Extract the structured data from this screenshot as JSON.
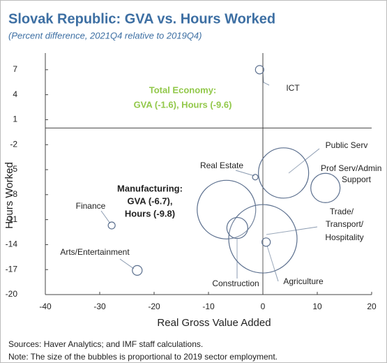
{
  "chart_data": {
    "type": "bubble",
    "title": "Slovak Republic: GVA vs. Hours Worked",
    "subtitle": "(Percent difference, 2021Q4 relative to 2019Q4)",
    "xlabel": "Real Gross Value Added",
    "ylabel": "Hours Worked",
    "xlim": [
      -40,
      20
    ],
    "ylim": [
      -20,
      9
    ],
    "xticks": [
      -40,
      -30,
      -20,
      -10,
      0,
      10,
      20
    ],
    "yticks": [
      7,
      4,
      1,
      -2,
      -5,
      -8,
      -11,
      -14,
      -17,
      -20
    ],
    "color": "#5b6f8e",
    "points": [
      {
        "label": [
          "ICT"
        ],
        "x": -0.6,
        "y": 7,
        "size": 36
      },
      {
        "label": [
          "Public Serv"
        ],
        "x": 3.8,
        "y": -5.4,
        "size": 1296
      },
      {
        "label": [
          "Prof Serv/Admin",
          "Support"
        ],
        "x": 11.5,
        "y": -7.2,
        "size": 441
      },
      {
        "label": [
          "Real Estate"
        ],
        "x": -1.4,
        "y": -5.9,
        "size": 16
      },
      {
        "label": [
          "Manufacturing:",
          "GVA (-6.7),",
          "Hours (-9.8)"
        ],
        "x": -6.7,
        "y": -9.8,
        "size": 1764
      },
      {
        "label": [
          "Trade/",
          "Transport/",
          "Hospitality"
        ],
        "x": 0,
        "y": -13.3,
        "size": 2401
      },
      {
        "label": [
          "Construction"
        ],
        "x": -4.7,
        "y": -12,
        "size": 225
      },
      {
        "label": [
          "Agriculture"
        ],
        "x": 0.6,
        "y": -13.7,
        "size": 36
      },
      {
        "label": [
          "Finance"
        ],
        "x": -27.8,
        "y": -11.7,
        "size": 25
      },
      {
        "label": [
          "Arts/Entertainment"
        ],
        "x": -23.1,
        "y": -17.1,
        "size": 49
      }
    ],
    "annotation": [
      "Total Economy:",
      "GVA (-1.6), Hours (-9.6)"
    ],
    "footnotes": [
      "Sources: Haver Analytics; and IMF staff calculations.",
      "Note: The size of the bubbles is proportional to 2019 sector employment."
    ]
  }
}
